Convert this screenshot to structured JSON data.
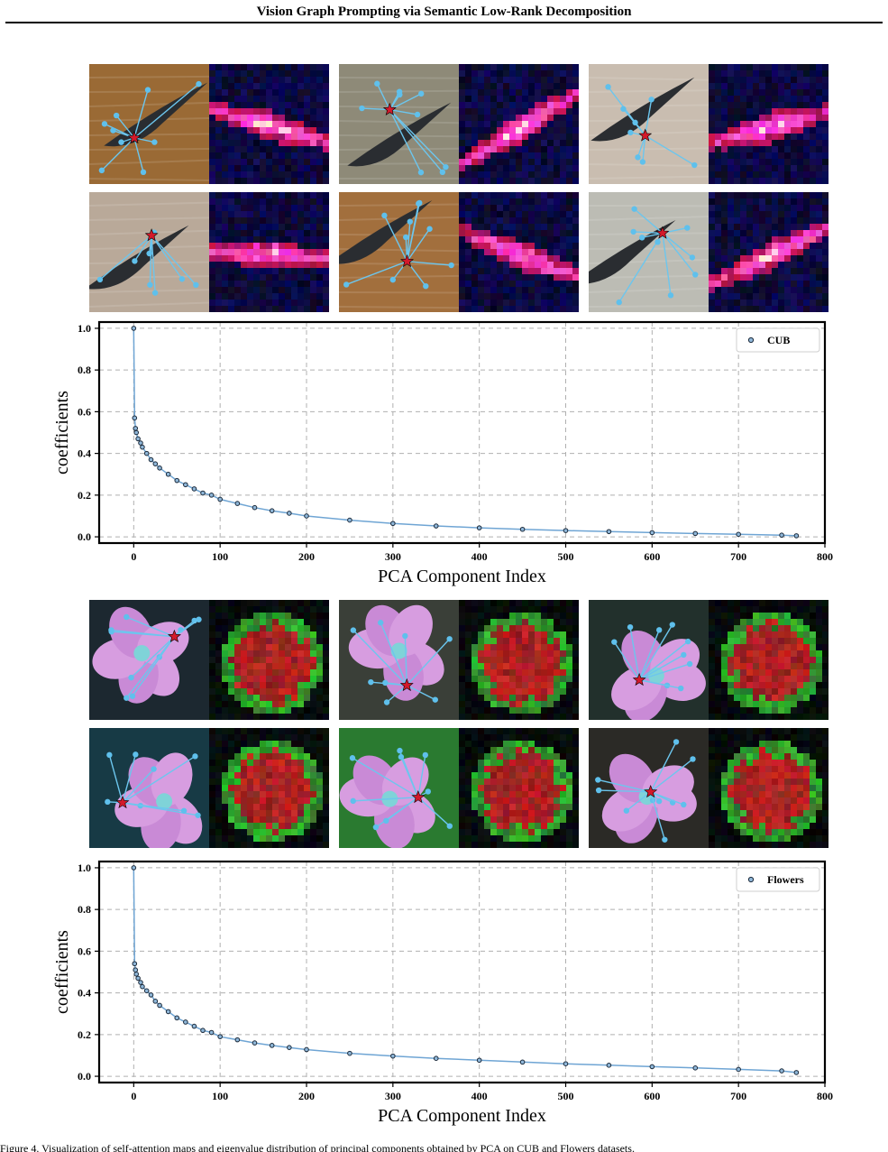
{
  "paper": {
    "running_title": "Vision Graph Prompting via Semantic Low-Rank Decomposition",
    "caption_partial": "Figure 4. Visualization of self-attention maps and eigenvalue distribution of principal components obtained by PCA on CUB and Flowers datasets."
  },
  "colors": {
    "graph_edge": "#6cc6ee",
    "graph_node": "#5fc0ec",
    "center_star": "#d3192b",
    "series_marker_edge": "#1c2a3a",
    "series_marker_fill": "#8fb7d9",
    "series_line": "#6fa5d4",
    "grid": "#b0b0b0"
  },
  "icons": [
    "red-star-icon",
    "graph-node-icon"
  ],
  "figures": {
    "birds": {
      "tiles": [
        {
          "subject": "bird",
          "bg": "#9a6a35"
        },
        {
          "subject": "bird",
          "bg": "#8e8a78"
        },
        {
          "subject": "bird",
          "bg": "#c9bdb0"
        },
        {
          "subject": "bird",
          "bg": "#b9a999"
        },
        {
          "subject": "bird",
          "bg": "#a26f3d"
        },
        {
          "subject": "bird",
          "bg": "#bcbcb4"
        }
      ]
    },
    "flowers": {
      "tiles": [
        {
          "subject": "flower",
          "bg": "#1c2830"
        },
        {
          "subject": "flower",
          "bg": "#3a3f38"
        },
        {
          "subject": "flower",
          "bg": "#22302c"
        },
        {
          "subject": "flower",
          "bg": "#173a45"
        },
        {
          "subject": "flower",
          "bg": "#2a7a30"
        },
        {
          "subject": "flower",
          "bg": "#2b2a26"
        }
      ]
    }
  },
  "chart_data": [
    {
      "type": "line",
      "legend": "CUB",
      "legend_position": "top-right",
      "xlabel": "PCA Component Index",
      "ylabel": "coefficients",
      "xlim": [
        -40,
        800
      ],
      "ylim": [
        -0.03,
        1.03
      ],
      "xticks": [
        0,
        100,
        200,
        300,
        400,
        500,
        600,
        700,
        800
      ],
      "yticks": [
        0.0,
        0.2,
        0.4,
        0.6,
        0.8,
        1.0
      ],
      "xtick_labels": [
        "0",
        "100",
        "200",
        "300",
        "400",
        "500",
        "600",
        "700",
        "800"
      ],
      "ytick_labels": [
        "0.0",
        "0.2",
        "0.4",
        "0.6",
        "0.8",
        "1.0"
      ],
      "grid": true,
      "series": [
        {
          "name": "CUB",
          "x": [
            0,
            1,
            2,
            3,
            5,
            8,
            10,
            15,
            20,
            25,
            30,
            40,
            50,
            60,
            70,
            80,
            90,
            100,
            120,
            140,
            160,
            180,
            200,
            250,
            300,
            350,
            400,
            450,
            500,
            550,
            600,
            650,
            700,
            750,
            767
          ],
          "y": [
            1.0,
            0.57,
            0.52,
            0.5,
            0.47,
            0.45,
            0.43,
            0.4,
            0.37,
            0.35,
            0.33,
            0.3,
            0.27,
            0.25,
            0.23,
            0.21,
            0.2,
            0.18,
            0.16,
            0.14,
            0.125,
            0.113,
            0.1,
            0.08,
            0.064,
            0.052,
            0.043,
            0.036,
            0.03,
            0.025,
            0.02,
            0.016,
            0.012,
            0.008,
            0.005
          ]
        }
      ]
    },
    {
      "type": "line",
      "legend": "Flowers",
      "legend_position": "top-right",
      "xlabel": "PCA Component Index",
      "ylabel": "coefficients",
      "xlim": [
        -40,
        800
      ],
      "ylim": [
        -0.03,
        1.03
      ],
      "xticks": [
        0,
        100,
        200,
        300,
        400,
        500,
        600,
        700,
        800
      ],
      "yticks": [
        0.0,
        0.2,
        0.4,
        0.6,
        0.8,
        1.0
      ],
      "xtick_labels": [
        "0",
        "100",
        "200",
        "300",
        "400",
        "500",
        "600",
        "700",
        "800"
      ],
      "ytick_labels": [
        "0.0",
        "0.2",
        "0.4",
        "0.6",
        "0.8",
        "1.0"
      ],
      "grid": true,
      "series": [
        {
          "name": "Flowers",
          "x": [
            0,
            1,
            2,
            3,
            5,
            8,
            10,
            15,
            20,
            25,
            30,
            40,
            50,
            60,
            70,
            80,
            90,
            100,
            120,
            140,
            160,
            180,
            200,
            250,
            300,
            350,
            400,
            450,
            500,
            550,
            600,
            650,
            700,
            750,
            767
          ],
          "y": [
            1.0,
            0.54,
            0.51,
            0.49,
            0.47,
            0.45,
            0.43,
            0.41,
            0.39,
            0.36,
            0.34,
            0.31,
            0.28,
            0.26,
            0.24,
            0.22,
            0.21,
            0.19,
            0.175,
            0.16,
            0.148,
            0.138,
            0.128,
            0.11,
            0.097,
            0.086,
            0.077,
            0.068,
            0.06,
            0.053,
            0.046,
            0.04,
            0.033,
            0.026,
            0.018
          ]
        }
      ]
    }
  ]
}
